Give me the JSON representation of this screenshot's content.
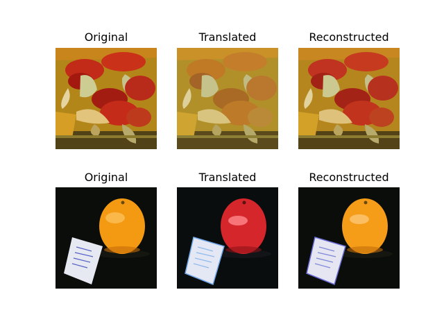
{
  "figure": {
    "rows": [
      {
        "panels": [
          {
            "title": "Original"
          },
          {
            "title": "Translated"
          },
          {
            "title": "Reconstructed"
          }
        ]
      },
      {
        "panels": [
          {
            "title": "Original"
          },
          {
            "title": "Translated"
          },
          {
            "title": "Reconstructed"
          }
        ]
      }
    ]
  },
  "colors": {
    "background": "#ffffff",
    "row1_base": "#b3861a",
    "row1_accent": "#b8261a",
    "row2_background": "#0b0d0a",
    "orange_fruit": "#f39a12",
    "red_fruit": "#d5262b",
    "note_paper": "#e6e8f2",
    "note_ink": "#5561c6"
  },
  "icons": {
    "row1": "food-photo-icon",
    "row2": "orange-and-note-photo-icon"
  }
}
